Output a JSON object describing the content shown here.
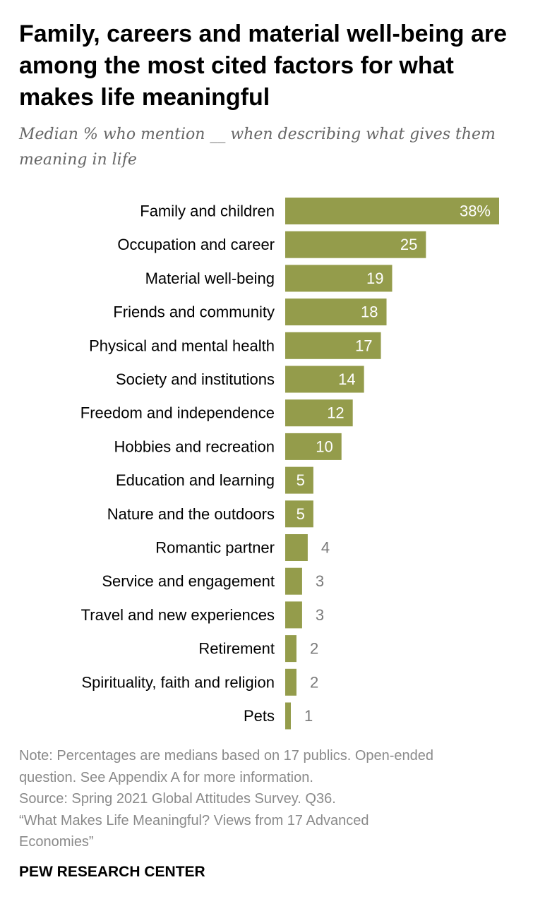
{
  "chart_data": {
    "type": "bar",
    "orientation": "horizontal",
    "title": "Family, careers and material well-being are among the most cited factors for what makes life meaningful",
    "subtitle": "Median % who mention __ when describing what gives them meaning in life",
    "categories": [
      "Family and children",
      "Occupation and career",
      "Material well-being",
      "Friends and community",
      "Physical and mental health",
      "Society and institutions",
      "Freedom and independence",
      "Hobbies and recreation",
      "Education and learning",
      "Nature and the outdoors",
      "Romantic partner",
      "Service and engagement",
      "Travel and new experiences",
      "Retirement",
      "Spirituality, faith and religion",
      "Pets"
    ],
    "values": [
      38,
      25,
      19,
      18,
      17,
      14,
      12,
      10,
      5,
      5,
      4,
      3,
      3,
      2,
      2,
      1
    ],
    "value_labels": [
      "38%",
      "25",
      "19",
      "18",
      "17",
      "14",
      "12",
      "10",
      "5",
      "5",
      "4",
      "3",
      "3",
      "2",
      "2",
      "1"
    ],
    "xlim": [
      0,
      38
    ],
    "grid": false,
    "legend": "none",
    "colors": {
      "bar": "#949c4b",
      "label_inside": "#ffffff",
      "label_outside": "#7a7a7a",
      "category_text": "#000000"
    }
  },
  "footer": {
    "note_lines": [
      "Note: Percentages are medians based on 17 publics. Open-ended",
      "question. See Appendix A for more information.",
      "Source: Spring 2021 Global Attitudes Survey. Q36.",
      "“What Makes Life Meaningful? Views from 17 Advanced",
      "Economies”"
    ],
    "brand": "PEW RESEARCH CENTER"
  }
}
